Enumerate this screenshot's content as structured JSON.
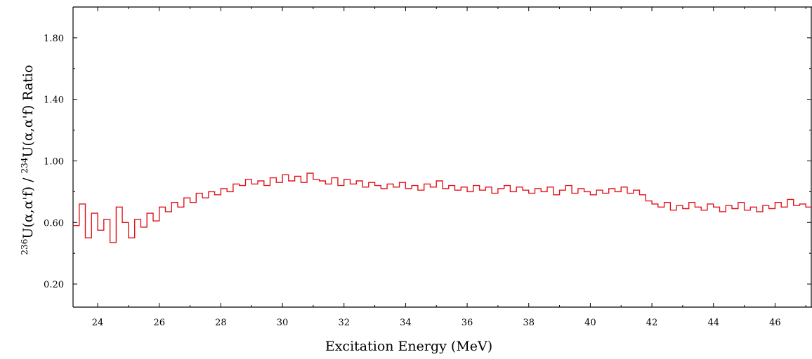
{
  "chart_data": {
    "type": "line",
    "title": "",
    "xlabel": "Excitation Energy (MeV)",
    "ylabel": {
      "sup1": "236",
      "part1": "U(α,α'f) / ",
      "sup2": "234",
      "part2": "U(α,α'f)  Ratio"
    },
    "xlim": [
      23.2,
      47.2
    ],
    "ylim": [
      0.05,
      2.0
    ],
    "x_ticks": [
      24,
      26,
      28,
      30,
      32,
      34,
      36,
      38,
      40,
      42,
      44,
      46
    ],
    "x_tick_labels": [
      "24",
      "26",
      "28",
      "30",
      "32",
      "34",
      "36",
      "38",
      "40",
      "42",
      "44",
      "46"
    ],
    "y_ticks": [
      0.2,
      0.6,
      1.0,
      1.4,
      1.8
    ],
    "y_tick_labels": [
      "0.20",
      "0.60",
      "1.00",
      "1.40",
      "1.80"
    ],
    "grid": false,
    "legend": "none",
    "line_style": "step",
    "series_color": "#e0151b",
    "series": [
      {
        "x": [
          23.2,
          23.4,
          23.6,
          23.8,
          24.0,
          24.2,
          24.4,
          24.6,
          24.8,
          25.0,
          25.2,
          25.4,
          25.6,
          25.8,
          26.0,
          26.2,
          26.4,
          26.6,
          26.8,
          27.0,
          27.2,
          27.4,
          27.6,
          27.8,
          28.0,
          28.2,
          28.4,
          28.6,
          28.8,
          29.0,
          29.2,
          29.4,
          29.6,
          29.8,
          30.0,
          30.2,
          30.4,
          30.6,
          30.8,
          31.0,
          31.2,
          31.4,
          31.6,
          31.8,
          32.0,
          32.2,
          32.4,
          32.6,
          32.8,
          33.0,
          33.2,
          33.4,
          33.6,
          33.8,
          34.0,
          34.2,
          34.4,
          34.6,
          34.8,
          35.0,
          35.2,
          35.4,
          35.6,
          35.8,
          36.0,
          36.2,
          36.4,
          36.6,
          36.8,
          37.0,
          37.2,
          37.4,
          37.6,
          37.8,
          38.0,
          38.2,
          38.4,
          38.6,
          38.8,
          39.0,
          39.2,
          39.4,
          39.6,
          39.8,
          40.0,
          40.2,
          40.4,
          40.6,
          40.8,
          41.0,
          41.2,
          41.4,
          41.6,
          41.8,
          42.0,
          42.2,
          42.4,
          42.6,
          42.8,
          43.0,
          43.2,
          43.4,
          43.6,
          43.8,
          44.0,
          44.2,
          44.4,
          44.6,
          44.8,
          45.0,
          45.2,
          45.4,
          45.6,
          45.8,
          46.0,
          46.2,
          46.4,
          46.6,
          46.8,
          47.0
        ],
        "y": [
          0.58,
          0.72,
          0.5,
          0.66,
          0.55,
          0.62,
          0.47,
          0.7,
          0.6,
          0.5,
          0.62,
          0.57,
          0.66,
          0.61,
          0.7,
          0.67,
          0.73,
          0.7,
          0.76,
          0.73,
          0.79,
          0.76,
          0.8,
          0.78,
          0.82,
          0.8,
          0.85,
          0.84,
          0.88,
          0.85,
          0.87,
          0.84,
          0.89,
          0.86,
          0.91,
          0.87,
          0.9,
          0.86,
          0.92,
          0.88,
          0.87,
          0.85,
          0.89,
          0.84,
          0.88,
          0.85,
          0.87,
          0.83,
          0.86,
          0.84,
          0.82,
          0.85,
          0.83,
          0.86,
          0.82,
          0.84,
          0.81,
          0.85,
          0.83,
          0.87,
          0.82,
          0.84,
          0.81,
          0.83,
          0.8,
          0.84,
          0.81,
          0.83,
          0.79,
          0.82,
          0.84,
          0.8,
          0.83,
          0.81,
          0.79,
          0.82,
          0.8,
          0.83,
          0.78,
          0.81,
          0.84,
          0.79,
          0.82,
          0.8,
          0.78,
          0.81,
          0.79,
          0.82,
          0.8,
          0.83,
          0.79,
          0.81,
          0.78,
          0.74,
          0.72,
          0.7,
          0.73,
          0.68,
          0.71,
          0.69,
          0.73,
          0.7,
          0.68,
          0.72,
          0.7,
          0.67,
          0.71,
          0.69,
          0.73,
          0.68,
          0.7,
          0.67,
          0.71,
          0.69,
          0.73,
          0.7,
          0.75,
          0.71,
          0.72,
          0.7
        ]
      }
    ]
  }
}
